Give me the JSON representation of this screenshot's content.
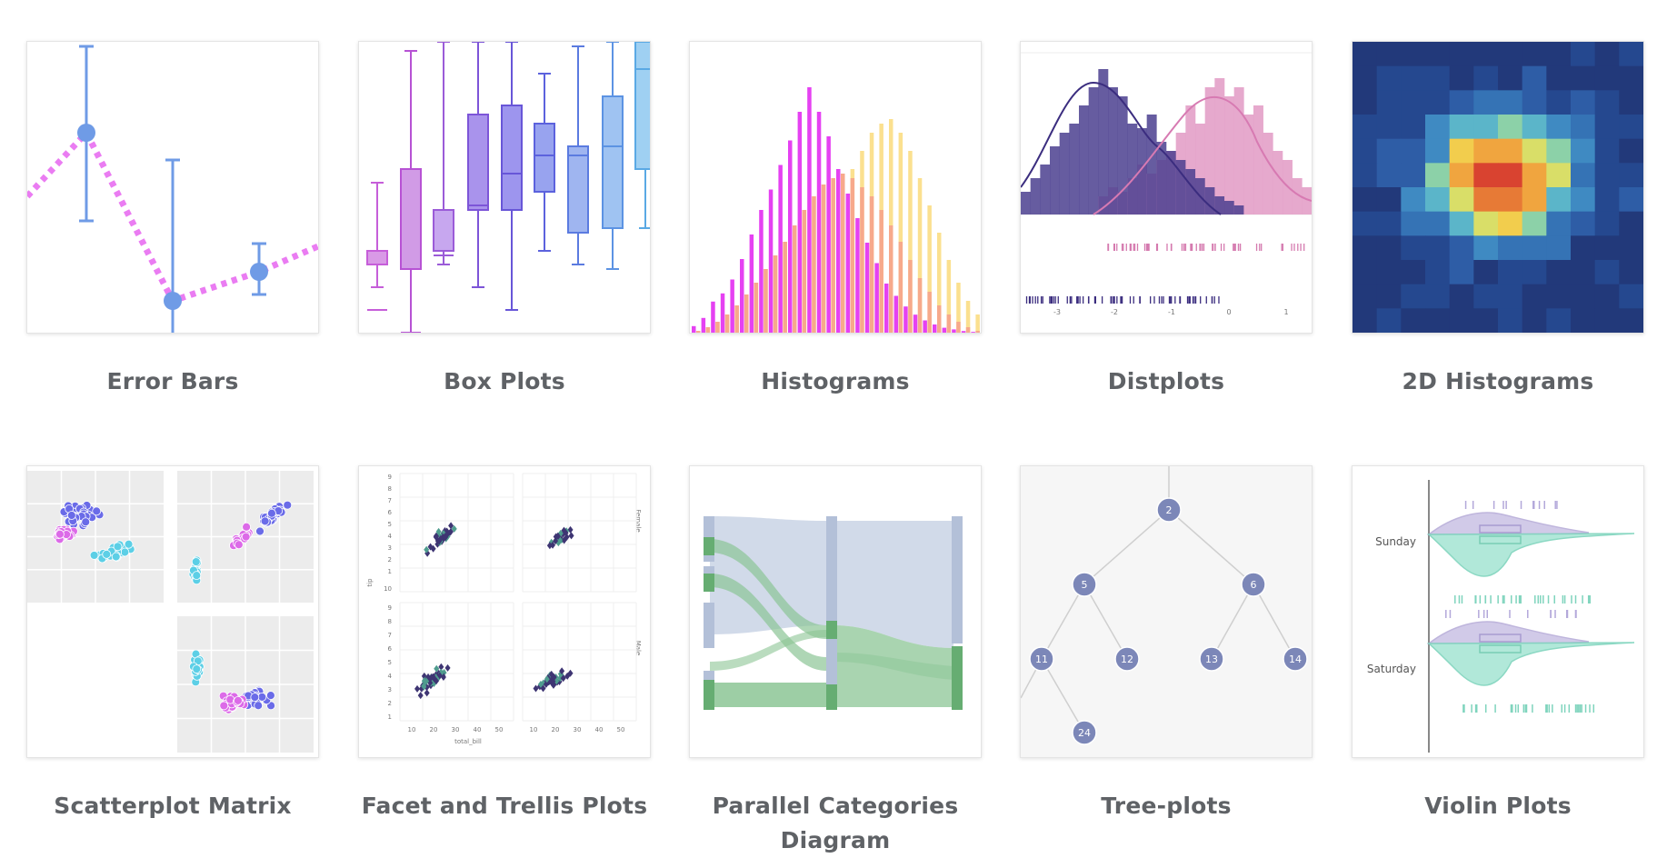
{
  "gallery": {
    "cards": [
      {
        "label": "Error Bars",
        "thumbnail": "error-bars-chart"
      },
      {
        "label": "Box Plots",
        "thumbnail": "box-plots-chart"
      },
      {
        "label": "Histograms",
        "thumbnail": "histograms-chart"
      },
      {
        "label": "Distplots",
        "thumbnail": "distplots-chart"
      },
      {
        "label": "2D Histograms",
        "thumbnail": "2d-histogram-heatmap"
      },
      {
        "label": "Scatterplot Matrix",
        "thumbnail": "scatterplot-matrix-chart"
      },
      {
        "label": "Facet and Trellis Plots",
        "thumbnail": "facet-trellis-chart"
      },
      {
        "label": "Parallel Categories Diagram",
        "thumbnail": "parallel-categories-diagram"
      },
      {
        "label": "Tree-plots",
        "thumbnail": "tree-plot-diagram"
      },
      {
        "label": "Violin Plots",
        "thumbnail": "violin-plots-chart"
      }
    ]
  },
  "thumbs": {
    "distplot": {
      "x_ticks": [
        "-3",
        "-2",
        "-1",
        "0",
        "1"
      ]
    },
    "facet": {
      "y_ticks_top": [
        "9",
        "8",
        "7",
        "6",
        "5",
        "4",
        "3",
        "2",
        "1",
        "10"
      ],
      "y_ticks_bottom": [
        "9",
        "8",
        "7",
        "6",
        "5",
        "4",
        "3",
        "2",
        "1"
      ],
      "x_ticks_left": [
        "10",
        "20",
        "30",
        "40",
        "50"
      ],
      "x_ticks_right": [
        "10",
        "20",
        "30",
        "40",
        "50"
      ],
      "y_label": "tip",
      "x_label": "total_bill",
      "facet_top": "Female",
      "facet_bottom": "Male"
    },
    "tree": {
      "nodes": [
        "2",
        "5",
        "6",
        "11",
        "12",
        "13",
        "14",
        "24"
      ]
    },
    "violin": {
      "categories": [
        "Sunday",
        "Saturday"
      ]
    }
  },
  "colors": {
    "label": "#5f6266",
    "blue": "#6f9be6",
    "magenta": "#e85cf2",
    "purple": "#7b6fe0",
    "cyan": "#5fd3ea",
    "navy": "#3b3f86",
    "pink": "#dc86b6",
    "green": "#6fbb7a",
    "gray_blue": "#b6c3dc",
    "teal": "#8fdcc6",
    "lavender": "#c9c1e8"
  }
}
